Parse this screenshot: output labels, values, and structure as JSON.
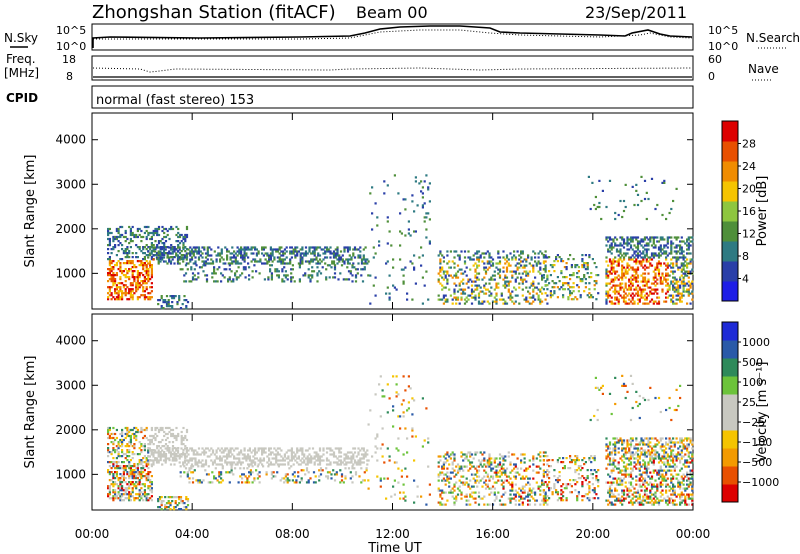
{
  "header": {
    "title": "Zhongshan Station (fitACF)",
    "beam": "Beam 00",
    "date": "23/Sep/2011"
  },
  "noise_panel": {
    "left_label": "N.Sky",
    "right_label": "N.Search",
    "left_ticks": [
      "10^5",
      "10^0"
    ],
    "right_ticks": [
      "10^5",
      "10^0"
    ]
  },
  "freq_panel": {
    "left_label_1": "Freq.",
    "left_label_2": "[MHz]",
    "right_label": "Nave",
    "left_ticks": [
      "18",
      "8"
    ],
    "right_ticks": [
      "60",
      "0"
    ]
  },
  "cpid_panel": {
    "label": "CPID",
    "text": "normal (fast stereo) 153"
  },
  "colors": {
    "power": [
      "#1e1ee6",
      "#2a3fa8",
      "#2e7a82",
      "#4f8f3a",
      "#8ec63f",
      "#f5c400",
      "#f08c00",
      "#e85000",
      "#dc0000"
    ],
    "velocity": [
      "#dc0000",
      "#e85000",
      "#f39a00",
      "#f5c400",
      "#c8c8c0",
      "#c8c8c0",
      "#6cc33a",
      "#2e8a5a",
      "#2a5aa8",
      "#1e2ad6"
    ]
  },
  "chart_data": [
    {
      "type": "heatmap",
      "name": "power",
      "ylabel": "Slant Range [km]",
      "yticks": [
        1000,
        2000,
        3000,
        4000
      ],
      "ylim": [
        200,
        4600
      ],
      "xlim": [
        0,
        24
      ],
      "colorbar_label": "Power [dB]",
      "colorbar_ticks": [
        "4",
        "8",
        "12",
        "16",
        "20",
        "24",
        "28"
      ],
      "colorbar_range": [
        0,
        32
      ]
    },
    {
      "type": "heatmap",
      "name": "velocity",
      "ylabel": "Slant Range [km]",
      "yticks": [
        1000,
        2000,
        3000,
        4000
      ],
      "ylim": [
        200,
        4600
      ],
      "xlim": [
        0,
        24
      ],
      "xticks": [
        "00:00",
        "04:00",
        "08:00",
        "12:00",
        "16:00",
        "20:00",
        "00:00"
      ],
      "xlabel": "Time UT",
      "colorbar_label": "Velocity [m s⁻¹]",
      "colorbar_ticks": [
        "1000",
        "500",
        "100",
        "25",
        "−25",
        "−100",
        "−500",
        "−1000"
      ]
    }
  ]
}
